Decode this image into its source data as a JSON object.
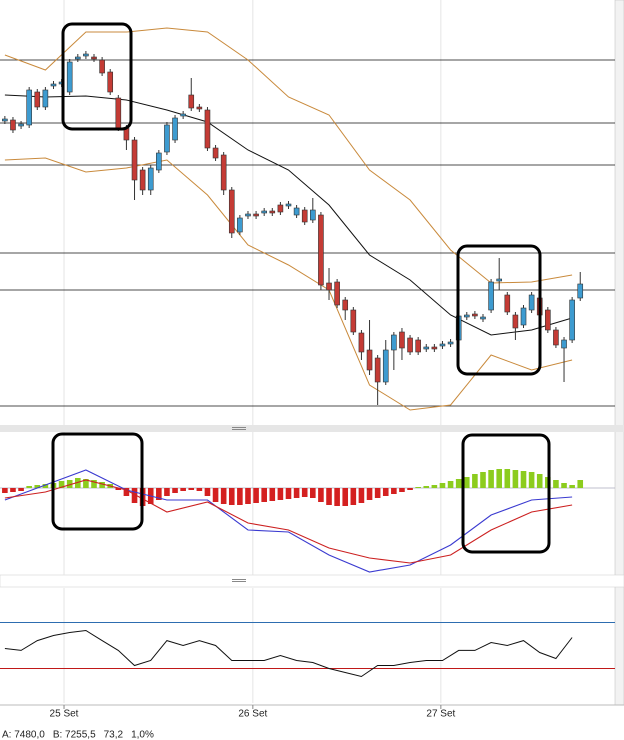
{
  "chart_data": [
    {
      "type": "candlestick",
      "x": [
        0,
        1,
        2,
        3,
        4,
        5,
        6,
        7,
        8,
        9,
        10,
        11,
        12,
        13,
        14,
        15,
        16,
        17,
        18,
        19,
        20,
        21,
        22,
        23,
        24,
        25,
        26,
        27,
        28,
        29,
        30,
        31,
        32,
        33,
        34,
        35,
        36,
        37,
        38,
        39,
        40,
        41,
        42,
        43,
        44,
        45,
        46,
        47,
        48,
        49,
        50,
        51,
        52,
        53,
        54,
        55,
        56,
        57,
        58,
        59,
        60,
        61,
        62,
        63,
        64,
        65,
        66,
        67,
        68,
        69,
        70,
        71
      ],
      "open": [
        7379,
        7380,
        7374,
        7375,
        7408,
        7393,
        7414,
        7416,
        7408,
        7441,
        7444,
        7443,
        7440,
        7428,
        7402,
        7372,
        7360,
        7330,
        7310,
        7330,
        7348,
        7360,
        7384,
        7405,
        7393,
        7390,
        7352,
        7345,
        7310,
        7268,
        7284,
        7286,
        7287,
        7289,
        7295,
        7294,
        7285,
        7290,
        7280,
        7285,
        7217,
        7218,
        7200,
        7190,
        7167,
        7150,
        7142,
        7118,
        7150,
        7168,
        7162,
        7160,
        7151,
        7153,
        7154,
        7156,
        7160,
        7183,
        7186,
        7181,
        7190,
        7219,
        7205,
        7185,
        7175,
        7190,
        7202,
        7190,
        7170,
        7152,
        7160,
        7202
      ],
      "close": [
        7381,
        7370,
        7376,
        7410,
        7393,
        7410,
        7416,
        7418,
        7438,
        7443,
        7446,
        7441,
        7427,
        7408,
        7372,
        7360,
        7320,
        7310,
        7332,
        7347,
        7375,
        7382,
        7386,
        7392,
        7391,
        7352,
        7342,
        7310,
        7267,
        7282,
        7286,
        7284,
        7289,
        7287,
        7288,
        7296,
        7292,
        7278,
        7290,
        7215,
        7210,
        7195,
        7190,
        7168,
        7148,
        7130,
        7118,
        7150,
        7165,
        7152,
        7148,
        7148,
        7153,
        7151,
        7156,
        7158,
        7184,
        7185,
        7184,
        7183,
        7218,
        7221,
        7188,
        7172,
        7192,
        7205,
        7185,
        7170,
        7155,
        7160,
        7200,
        7216
      ],
      "high": [
        7384,
        7383,
        7379,
        7413,
        7411,
        7413,
        7419,
        7421,
        7441,
        7446,
        7449,
        7446,
        7443,
        7431,
        7405,
        7375,
        7363,
        7333,
        7335,
        7350,
        7378,
        7385,
        7389,
        7422,
        7396,
        7393,
        7355,
        7348,
        7313,
        7285,
        7289,
        7289,
        7292,
        7292,
        7298,
        7299,
        7295,
        7293,
        7302,
        7288,
        7232,
        7221,
        7203,
        7193,
        7170,
        7180,
        7145,
        7160,
        7168,
        7172,
        7165,
        7163,
        7156,
        7156,
        7159,
        7161,
        7187,
        7188,
        7189,
        7186,
        7221,
        7242,
        7208,
        7188,
        7195,
        7208,
        7205,
        7193,
        7173,
        7163,
        7203,
        7228
      ],
      "low": [
        7376,
        7367,
        7371,
        7372,
        7390,
        7390,
        7411,
        7413,
        7405,
        7438,
        7441,
        7438,
        7424,
        7405,
        7369,
        7350,
        7300,
        7305,
        7305,
        7327,
        7345,
        7357,
        7381,
        7389,
        7388,
        7349,
        7339,
        7305,
        7262,
        7265,
        7281,
        7281,
        7284,
        7284,
        7285,
        7291,
        7282,
        7275,
        7277,
        7210,
        7200,
        7192,
        7180,
        7165,
        7140,
        7125,
        7095,
        7115,
        7130,
        7140,
        7145,
        7145,
        7148,
        7148,
        7151,
        7153,
        7157,
        7180,
        7181,
        7178,
        7187,
        7210,
        7185,
        7160,
        7172,
        7187,
        7182,
        7167,
        7152,
        7118,
        7157,
        7199
      ],
      "up_color": "#3d9bd0",
      "down_color": "#c43b35",
      "lines": [
        {
          "x": [
            0,
            5,
            10,
            15,
            20,
            25,
            30,
            35,
            40,
            45,
            50,
            55,
            60,
            65,
            70
          ],
          "values": [
            7445,
            7430,
            7468,
            7468,
            7472,
            7468,
            7440,
            7403,
            7385,
            7330,
            7300,
            7250,
            7217,
            7218,
            7225
          ],
          "color": "#c98a3c"
        },
        {
          "x": [
            0,
            5,
            10,
            15,
            20,
            25,
            30,
            35,
            40,
            45,
            50,
            55,
            60,
            65,
            70
          ],
          "values": [
            7405,
            7403,
            7404,
            7400,
            7390,
            7378,
            7350,
            7330,
            7295,
            7245,
            7220,
            7185,
            7165,
            7170,
            7182
          ],
          "color": "#111111"
        },
        {
          "x": [
            0,
            5,
            10,
            15,
            20,
            25,
            30,
            35,
            40,
            45,
            50,
            55,
            60,
            65,
            70
          ],
          "values": [
            7340,
            7342,
            7328,
            7332,
            7340,
            7305,
            7255,
            7235,
            7210,
            7115,
            7090,
            7095,
            7145,
            7130,
            7140
          ],
          "color": "#c98a3c"
        }
      ],
      "levels": [
        7440,
        7377,
        7335,
        7247,
        7210,
        7094
      ],
      "xlim": [
        -0.6,
        76.4
      ],
      "ylim": [
        7075,
        7500
      ]
    },
    {
      "type": "bar",
      "x": [
        0,
        1,
        2,
        3,
        4,
        5,
        6,
        7,
        8,
        9,
        10,
        11,
        12,
        13,
        14,
        15,
        16,
        17,
        18,
        19,
        20,
        21,
        22,
        23,
        24,
        25,
        26,
        27,
        28,
        29,
        30,
        31,
        32,
        33,
        34,
        35,
        36,
        37,
        38,
        39,
        40,
        41,
        42,
        43,
        44,
        45,
        46,
        47,
        48,
        49,
        50,
        51,
        52,
        53,
        54,
        55,
        56,
        57,
        58,
        59,
        60,
        61,
        62,
        63,
        64,
        65,
        66,
        67,
        68,
        69,
        70,
        71
      ],
      "values": [
        -0.5,
        -0.4,
        -0.3,
        0.2,
        0.3,
        0.4,
        0.5,
        0.7,
        0.8,
        1.0,
        0.9,
        0.8,
        0.6,
        0.4,
        -0.2,
        -0.8,
        -1.5,
        -1.8,
        -1.6,
        -1.2,
        -0.8,
        -0.5,
        -0.3,
        -0.2,
        -0.3,
        -0.8,
        -1.4,
        -1.6,
        -1.7,
        -1.7,
        -1.6,
        -1.5,
        -1.4,
        -1.3,
        -1.2,
        -1.1,
        -1.0,
        -0.9,
        -1.0,
        -1.4,
        -1.7,
        -1.8,
        -1.8,
        -1.7,
        -1.5,
        -1.2,
        -1.0,
        -0.8,
        -0.6,
        -0.4,
        -0.2,
        0.1,
        0.2,
        0.3,
        0.5,
        0.7,
        0.9,
        1.1,
        1.4,
        1.6,
        1.8,
        1.9,
        1.9,
        1.8,
        1.7,
        1.6,
        1.4,
        1.1,
        0.8,
        0.5,
        0.3,
        0.8
      ],
      "up_color": "#8ccc1e",
      "down_color": "#d42020",
      "lines": [
        {
          "x": [
            0,
            5,
            10,
            15,
            20,
            25,
            30,
            35,
            40,
            45,
            50,
            55,
            60,
            65,
            70
          ],
          "values": [
            -1.2,
            0.3,
            1.8,
            -0.2,
            -1.2,
            -1.2,
            -4.2,
            -4.4,
            -6.7,
            -8.4,
            -7.7,
            -5.7,
            -2.7,
            -1.2,
            -0.9
          ],
          "color": "#3a3ad0"
        },
        {
          "x": [
            0,
            5,
            10,
            15,
            20,
            25,
            30,
            35,
            40,
            45,
            50,
            55,
            60,
            65,
            70
          ],
          "values": [
            -1.0,
            -0.4,
            0.8,
            -0.2,
            -2.4,
            -1.4,
            -3.5,
            -4.2,
            -6.0,
            -7.0,
            -7.5,
            -6.7,
            -4.2,
            -2.4,
            -1.7
          ],
          "color": "#cc2020"
        }
      ],
      "levels": [
        0
      ],
      "xlim": [
        -0.6,
        76.4
      ],
      "ylim": [
        -8.7,
        5.6
      ]
    },
    {
      "type": "line",
      "x": [
        0,
        2,
        4,
        6,
        8,
        10,
        12,
        14,
        16,
        18,
        20,
        22,
        24,
        26,
        28,
        30,
        32,
        34,
        36,
        38,
        40,
        42,
        44,
        46,
        48,
        50,
        52,
        54,
        56,
        58,
        60,
        62,
        64,
        66,
        68,
        70
      ],
      "values": [
        47.4,
        45.7,
        54.3,
        58.7,
        61.3,
        63.0,
        54.3,
        45.7,
        32.6,
        37.0,
        54.3,
        50.0,
        54.3,
        50.0,
        37.0,
        37.0,
        37.0,
        41.3,
        37.0,
        35.2,
        30.0,
        26.5,
        23.0,
        32.6,
        32.6,
        35.2,
        37.0,
        37.0,
        45.7,
        45.7,
        52.6,
        50.0,
        54.3,
        43.9,
        38.7,
        57.0
      ],
      "color": "#111111",
      "levels": [
        70,
        30
      ],
      "level_colors": [
        "#2d6db0",
        "#c01818"
      ],
      "xticks": [
        {
          "value": 7.3,
          "label": "25 Set"
        },
        {
          "value": 30.6,
          "label": "26 Set"
        },
        {
          "value": 53.8,
          "label": "27 Set"
        }
      ],
      "xlim": [
        -0.6,
        76.4
      ],
      "ylim": [
        0,
        100
      ]
    }
  ],
  "footer": [
    "A: 7480,0",
    "B: 7255,5",
    "73,2",
    "1,0%"
  ]
}
